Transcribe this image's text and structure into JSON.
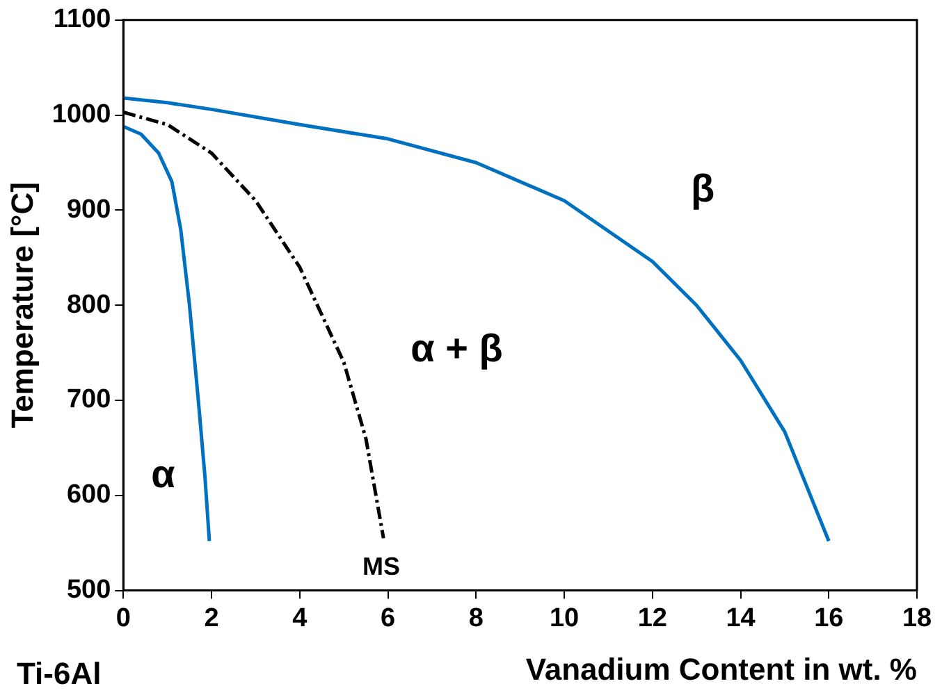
{
  "chart_data": {
    "type": "line",
    "xlabel": "Vanadium Content in wt. %",
    "ylabel": "Temperature [°C]",
    "xlim": [
      0,
      18
    ],
    "xticks": [
      0,
      2,
      4,
      6,
      8,
      10,
      12,
      14,
      16,
      18
    ],
    "ylim": [
      500,
      1100
    ],
    "yticks": [
      500,
      600,
      700,
      800,
      900,
      1000,
      1100
    ],
    "grid": false,
    "legend": false,
    "marker": "none",
    "series": [
      {
        "color": "#0070c0",
        "line_style": "solid",
        "x": [
          0,
          1,
          2,
          4,
          6,
          8,
          10,
          12,
          13,
          14,
          15,
          16
        ],
        "values": [
          1018,
          1013,
          1006,
          990,
          975,
          950,
          910,
          846,
          800,
          742,
          667,
          552
        ]
      },
      {
        "color": "#0070c0",
        "line_style": "solid",
        "x": [
          0,
          0.4,
          0.8,
          1.1,
          1.3,
          1.5,
          1.7,
          1.85,
          1.95
        ],
        "values": [
          988,
          980,
          960,
          930,
          880,
          800,
          700,
          620,
          552
        ]
      },
      {
        "color": "#000000",
        "line_style": "dashed",
        "x": [
          0,
          1,
          2,
          3,
          4,
          5,
          5.5,
          5.9
        ],
        "values": [
          1003,
          990,
          960,
          910,
          840,
          740,
          660,
          555
        ]
      }
    ],
    "annotations": [
      "β",
      "α + β",
      "α",
      "MS",
      "Ti-6Al"
    ]
  }
}
